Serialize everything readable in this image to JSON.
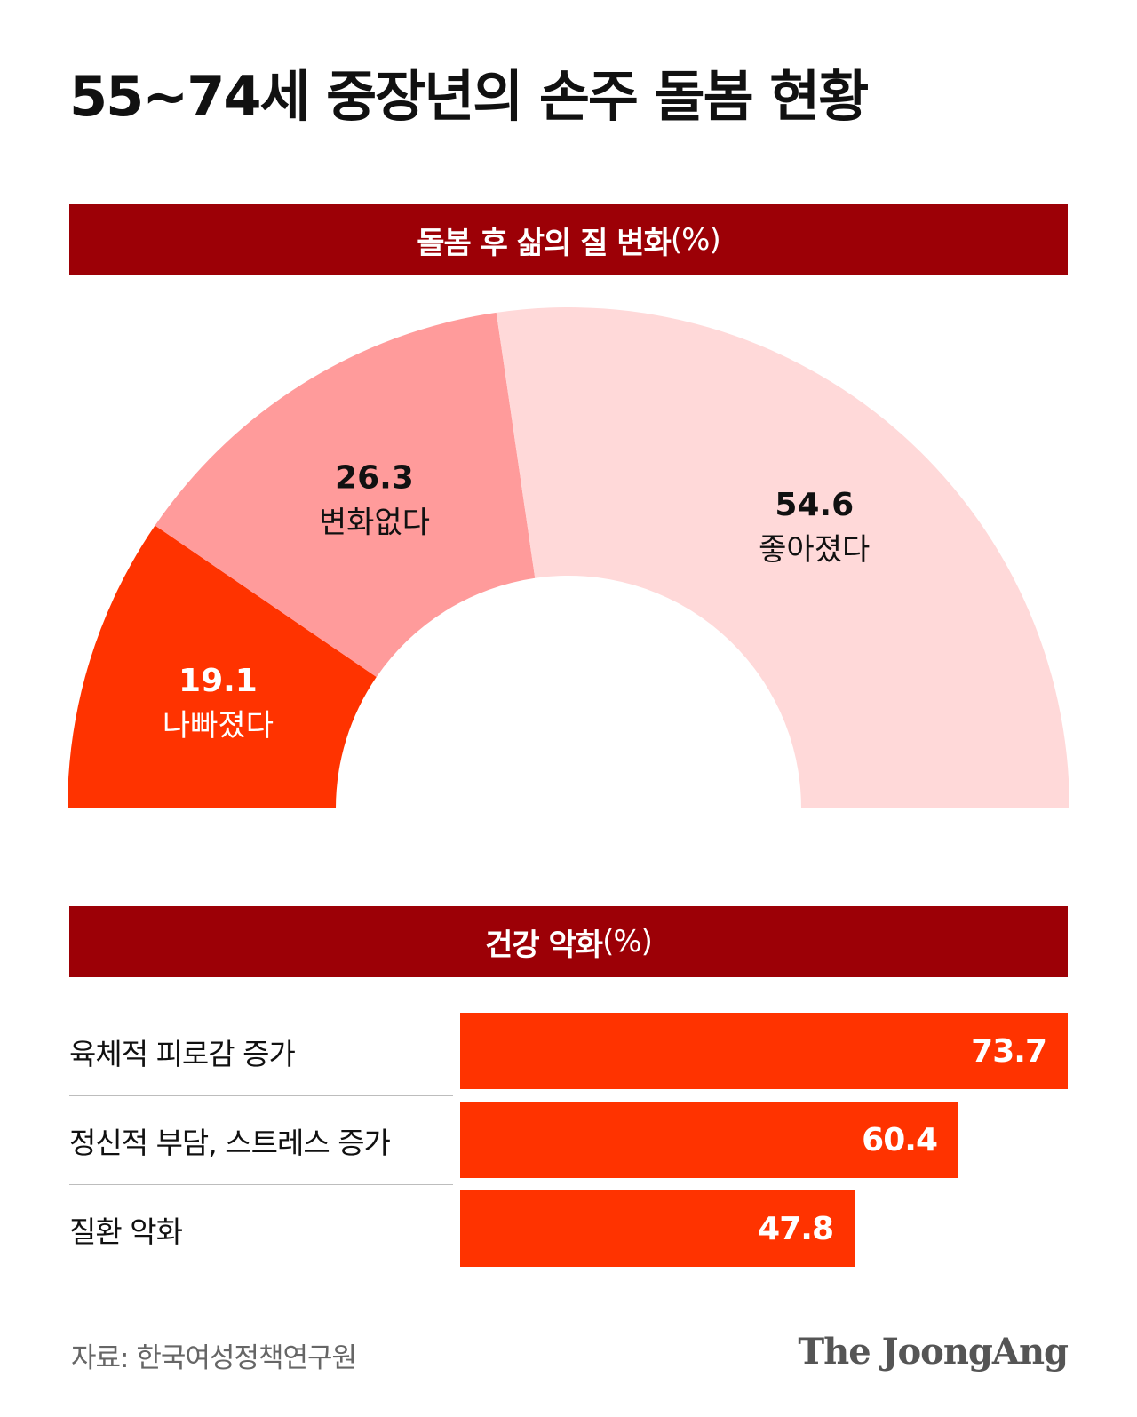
{
  "title": "55~74세 중장년의 손주 돌봄 현황",
  "sections": {
    "quality": {
      "title": "돌봄 후 삶의 질 변화",
      "unit": "(%)"
    },
    "health": {
      "title": "건강 악화",
      "unit": "(%)"
    }
  },
  "colors": {
    "header_bg": "#9c0006",
    "worse": "#ff3300",
    "no_change": "#ff9b9b",
    "better": "#ffd9d9",
    "bar": "#ff3300"
  },
  "chart_data": [
    {
      "type": "pie",
      "variant": "half-donut",
      "title": "돌봄 후 삶의 질 변화(%)",
      "slices": [
        {
          "label": "나빠졌다",
          "value": 19.1,
          "color": "#ff3300",
          "text_color": "#ffffff"
        },
        {
          "label": "변화없다",
          "value": 26.3,
          "color": "#ff9b9b",
          "text_color": "#111111"
        },
        {
          "label": "좋아졌다",
          "value": 54.6,
          "color": "#ffd9d9",
          "text_color": "#111111"
        }
      ]
    },
    {
      "type": "bar",
      "orientation": "horizontal",
      "title": "건강 악화(%)",
      "categories": [
        "육체적 피로감 증가",
        "정신적 부담, 스트레스 증가",
        "질환 악화"
      ],
      "values": [
        73.7,
        60.4,
        47.8
      ],
      "color": "#ff3300"
    }
  ],
  "footer": {
    "source": "자료: 한국여성정책연구원",
    "logo": "The JoongAng"
  }
}
